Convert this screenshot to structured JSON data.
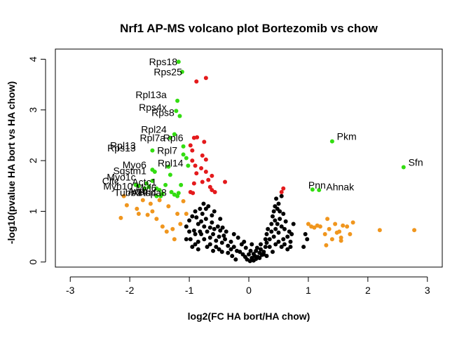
{
  "chart_data": {
    "type": "scatter",
    "title": "Nrf1 AP-MS volcano plot Bortezomib vs chow",
    "xlabel": "log2(FC HA bort/HA chow)",
    "ylabel": "-log10(pvalue HA bort vs HA chow)",
    "xlim": [
      -3.25,
      3.25
    ],
    "ylim": [
      -0.1,
      4.2
    ],
    "xticks": [
      -3,
      -2,
      -1,
      0,
      1,
      2,
      3
    ],
    "yticks": [
      0,
      1,
      2,
      3,
      4
    ],
    "xtick_labels": [
      "-3",
      "-2",
      "-1",
      "0",
      "1",
      "2",
      "3"
    ],
    "ytick_labels": [
      "0",
      "1",
      "2",
      "3",
      "4"
    ],
    "grid": false,
    "colors": {
      "black": "#000000",
      "red": "#e41a1c",
      "green": "#33dd11",
      "orange": "#f0961e"
    },
    "series": [
      {
        "color": "black",
        "points": [
          [
            0.02,
            0.02
          ],
          [
            -0.03,
            0.05
          ],
          [
            0.05,
            0.08
          ],
          [
            0.08,
            0.03
          ],
          [
            -0.06,
            0.1
          ],
          [
            0.1,
            0.12
          ],
          [
            0.12,
            0.06
          ],
          [
            -0.1,
            0.15
          ],
          [
            0.15,
            0.1
          ],
          [
            0.18,
            0.18
          ],
          [
            -0.15,
            0.2
          ],
          [
            0.2,
            0.25
          ],
          [
            0.22,
            0.14
          ],
          [
            -0.2,
            0.22
          ],
          [
            0.25,
            0.2
          ],
          [
            0.28,
            0.3
          ],
          [
            -0.25,
            0.3
          ],
          [
            0.3,
            0.12
          ],
          [
            0.05,
            0.35
          ],
          [
            -0.05,
            0.28
          ],
          [
            0.0,
            0.15
          ],
          [
            0.03,
            0.22
          ],
          [
            -0.12,
            0.35
          ],
          [
            0.14,
            0.28
          ],
          [
            -0.3,
            0.4
          ],
          [
            -0.35,
            0.32
          ],
          [
            -0.4,
            0.45
          ],
          [
            -0.45,
            0.38
          ],
          [
            -0.5,
            0.5
          ],
          [
            -0.55,
            0.42
          ],
          [
            -0.6,
            0.55
          ],
          [
            -0.38,
            0.6
          ],
          [
            -0.42,
            0.52
          ],
          [
            -0.48,
            0.62
          ],
          [
            -0.52,
            0.7
          ],
          [
            -0.58,
            0.65
          ],
          [
            -0.62,
            0.78
          ],
          [
            -0.65,
            0.48
          ],
          [
            -0.7,
            0.6
          ],
          [
            -0.72,
            0.85
          ],
          [
            -0.75,
            0.7
          ],
          [
            -0.78,
            0.95
          ],
          [
            -0.8,
            0.55
          ],
          [
            -0.82,
            1.05
          ],
          [
            -0.85,
            0.75
          ],
          [
            -0.88,
            0.88
          ],
          [
            -0.9,
            1.0
          ],
          [
            -0.92,
            0.62
          ],
          [
            -0.95,
            0.9
          ],
          [
            -0.98,
            0.45
          ],
          [
            -1.0,
            0.82
          ],
          [
            -0.9,
            0.35
          ],
          [
            -0.85,
            0.25
          ],
          [
            -0.7,
            0.3
          ],
          [
            -0.6,
            0.22
          ],
          [
            -0.65,
            0.35
          ],
          [
            -0.55,
            0.3
          ],
          [
            -0.5,
            0.25
          ],
          [
            -0.45,
            0.2
          ],
          [
            -0.35,
            0.18
          ],
          [
            -0.3,
            0.25
          ],
          [
            -0.28,
            0.12
          ],
          [
            -0.22,
            0.05
          ],
          [
            -0.68,
            1.1
          ],
          [
            -0.72,
            1.05
          ],
          [
            -0.76,
            1.15
          ],
          [
            -0.58,
            1.0
          ],
          [
            -0.62,
            0.92
          ],
          [
            -0.48,
            0.85
          ],
          [
            -0.44,
            0.68
          ],
          [
            -1.05,
            0.7
          ],
          [
            -1.0,
            0.6
          ],
          [
            -1.05,
            0.45
          ],
          [
            -0.95,
            0.3
          ],
          [
            -0.82,
            0.6
          ],
          [
            0.3,
            0.55
          ],
          [
            0.35,
            0.45
          ],
          [
            0.38,
            0.6
          ],
          [
            0.42,
            0.5
          ],
          [
            0.45,
            0.65
          ],
          [
            0.48,
            0.75
          ],
          [
            0.5,
            0.58
          ],
          [
            0.52,
            0.85
          ],
          [
            0.55,
            0.7
          ],
          [
            0.58,
            0.95
          ],
          [
            0.6,
            0.65
          ],
          [
            0.62,
            0.8
          ],
          [
            0.65,
            0.5
          ],
          [
            0.68,
            0.6
          ],
          [
            0.7,
            0.4
          ],
          [
            0.72,
            0.55
          ],
          [
            0.75,
            0.75
          ],
          [
            0.4,
            0.9
          ],
          [
            0.42,
            1.0
          ],
          [
            0.44,
            1.1
          ],
          [
            0.46,
            1.25
          ],
          [
            0.48,
            1.05
          ],
          [
            0.5,
            1.15
          ],
          [
            0.52,
            1.0
          ],
          [
            0.55,
            1.3
          ],
          [
            0.35,
            0.3
          ],
          [
            0.4,
            0.2
          ],
          [
            0.45,
            0.35
          ],
          [
            0.5,
            0.4
          ],
          [
            0.55,
            0.3
          ],
          [
            0.6,
            0.35
          ],
          [
            0.65,
            0.25
          ],
          [
            0.32,
            0.65
          ],
          [
            0.38,
            0.75
          ],
          [
            0.28,
            0.45
          ],
          [
            0.95,
            0.55
          ],
          [
            0.98,
            0.45
          ],
          [
            0.92,
            0.3
          ],
          [
            0.25,
            0.15
          ],
          [
            0.2,
            0.35
          ],
          [
            0.12,
            0.22
          ],
          [
            0.08,
            0.16
          ],
          [
            -0.08,
            0.4
          ],
          [
            -0.18,
            0.48
          ],
          [
            -0.25,
            0.55
          ],
          [
            -0.85,
            0.4
          ],
          [
            -0.75,
            0.45
          ],
          [
            -0.9,
            0.55
          ],
          [
            -0.8,
            0.8
          ],
          [
            -0.65,
            0.68
          ],
          [
            0.44,
            0.82
          ],
          [
            0.3,
            0.38
          ],
          [
            0.58,
            0.45
          ],
          [
            0.7,
            0.3
          ],
          [
            0.18,
            0.08
          ]
        ]
      },
      {
        "color": "red",
        "points": [
          [
            -0.72,
            3.63
          ],
          [
            -0.88,
            3.56
          ],
          [
            -0.87,
            2.46
          ],
          [
            -0.92,
            2.45
          ],
          [
            -0.75,
            2.37
          ],
          [
            -0.98,
            2.3
          ],
          [
            -0.95,
            2.2
          ],
          [
            -0.78,
            2.1
          ],
          [
            -0.72,
            2.02
          ],
          [
            -0.95,
            2.0
          ],
          [
            -0.9,
            1.9
          ],
          [
            -0.8,
            1.85
          ],
          [
            -0.88,
            1.75
          ],
          [
            -0.72,
            1.78
          ],
          [
            -0.62,
            1.7
          ],
          [
            -0.68,
            1.62
          ],
          [
            -0.78,
            1.58
          ],
          [
            -0.4,
            1.58
          ],
          [
            -0.92,
            1.55
          ],
          [
            -0.65,
            1.48
          ],
          [
            -0.62,
            1.42
          ],
          [
            -0.57,
            1.38
          ],
          [
            -0.98,
            1.38
          ],
          [
            -0.94,
            1.36
          ],
          [
            0.58,
            1.45
          ],
          [
            0.55,
            1.38
          ]
        ]
      },
      {
        "color": "green",
        "points": [
          [
            -1.18,
            3.95
          ],
          [
            -1.12,
            3.75
          ],
          [
            -1.2,
            3.18
          ],
          [
            -1.22,
            2.98
          ],
          [
            -1.16,
            2.88
          ],
          [
            -1.25,
            2.52
          ],
          [
            -1.1,
            2.28
          ],
          [
            -1.32,
            2.45
          ],
          [
            -1.62,
            2.2
          ],
          [
            -1.1,
            2.12
          ],
          [
            -1.05,
            2.05
          ],
          [
            -1.02,
            1.9
          ],
          [
            -1.35,
            1.88
          ],
          [
            -1.62,
            1.82
          ],
          [
            -1.58,
            1.78
          ],
          [
            -1.32,
            1.72
          ],
          [
            -1.4,
            1.52
          ],
          [
            -1.62,
            1.6
          ],
          [
            -1.72,
            1.55
          ],
          [
            -1.85,
            1.5
          ],
          [
            -1.9,
            1.52
          ],
          [
            -1.68,
            1.48
          ],
          [
            -1.75,
            1.45
          ],
          [
            -1.55,
            1.45
          ],
          [
            -1.5,
            1.42
          ],
          [
            -1.45,
            1.35
          ],
          [
            -1.3,
            1.38
          ],
          [
            -1.25,
            1.33
          ],
          [
            -1.18,
            1.36
          ],
          [
            -1.14,
            1.52
          ],
          [
            -1.48,
            1.3
          ],
          [
            -1.55,
            1.3
          ],
          [
            -1.2,
            1.3
          ],
          [
            1.07,
            1.43
          ],
          [
            1.18,
            1.42
          ],
          [
            1.4,
            2.38
          ],
          [
            2.6,
            1.87
          ]
        ]
      },
      {
        "color": "orange",
        "points": [
          [
            -2.15,
            0.87
          ],
          [
            -2.1,
            1.3
          ],
          [
            -2.05,
            1.12
          ],
          [
            -1.88,
            1.05
          ],
          [
            -1.85,
            0.95
          ],
          [
            -1.78,
            1.22
          ],
          [
            -1.7,
            0.93
          ],
          [
            -1.62,
            1.0
          ],
          [
            -1.55,
            0.85
          ],
          [
            -1.5,
            1.22
          ],
          [
            -1.45,
            0.7
          ],
          [
            -1.38,
            0.6
          ],
          [
            -1.28,
            0.65
          ],
          [
            -1.2,
            0.95
          ],
          [
            -1.15,
            0.75
          ],
          [
            -1.1,
            1.2
          ],
          [
            -1.05,
            0.95
          ],
          [
            -1.25,
            0.45
          ],
          [
            -1.35,
            1.1
          ],
          [
            -1.65,
            1.15
          ],
          [
            1.0,
            0.75
          ],
          [
            1.05,
            0.7
          ],
          [
            1.1,
            0.68
          ],
          [
            1.15,
            0.72
          ],
          [
            1.2,
            0.7
          ],
          [
            1.28,
            0.55
          ],
          [
            1.32,
            0.85
          ],
          [
            1.35,
            0.65
          ],
          [
            1.4,
            0.45
          ],
          [
            1.45,
            0.75
          ],
          [
            1.48,
            0.58
          ],
          [
            1.52,
            0.6
          ],
          [
            1.55,
            0.48
          ],
          [
            1.58,
            0.72
          ],
          [
            1.65,
            0.7
          ],
          [
            1.7,
            0.55
          ],
          [
            1.75,
            0.78
          ],
          [
            1.3,
            0.33
          ],
          [
            1.55,
            0.42
          ],
          [
            2.2,
            0.63
          ],
          [
            2.78,
            0.63
          ]
        ]
      }
    ],
    "labels": [
      {
        "text": "Rps18",
        "x": -1.2,
        "y": 3.95,
        "anchor": "end"
      },
      {
        "text": "Rps25",
        "x": -1.12,
        "y": 3.75,
        "anchor": "end"
      },
      {
        "text": "Rpl13a",
        "x": -1.38,
        "y": 3.3,
        "anchor": "end"
      },
      {
        "text": "Rps4x",
        "x": -1.38,
        "y": 3.05,
        "anchor": "end"
      },
      {
        "text": "Rps8",
        "x": -1.25,
        "y": 2.95,
        "anchor": "end"
      },
      {
        "text": "Rpl24",
        "x": -1.38,
        "y": 2.62,
        "anchor": "end"
      },
      {
        "text": "Rpl7a",
        "x": -1.4,
        "y": 2.45,
        "anchor": "end"
      },
      {
        "text": "Rpl6",
        "x": -1.1,
        "y": 2.45,
        "anchor": "end"
      },
      {
        "text": "Rpl13",
        "x": -1.9,
        "y": 2.3,
        "anchor": "end"
      },
      {
        "text": "Rps13",
        "x": -1.9,
        "y": 2.25,
        "anchor": "end"
      },
      {
        "text": "Rpl7",
        "x": -1.2,
        "y": 2.2,
        "anchor": "end"
      },
      {
        "text": "Rpl14",
        "x": -1.1,
        "y": 1.95,
        "anchor": "end"
      },
      {
        "text": "Myo6",
        "x": -1.72,
        "y": 1.92,
        "anchor": "end"
      },
      {
        "text": "Sqstm1",
        "x": -1.72,
        "y": 1.8,
        "anchor": "end"
      },
      {
        "text": "Myo1c",
        "x": -1.9,
        "y": 1.68,
        "anchor": "end"
      },
      {
        "text": "Cltc",
        "x": -2.18,
        "y": 1.6,
        "anchor": "end"
      },
      {
        "text": "Actc1",
        "x": -1.55,
        "y": 1.58,
        "anchor": "end"
      },
      {
        "text": "Myh10",
        "x": -1.95,
        "y": 1.5,
        "anchor": "end"
      },
      {
        "text": "Myl6",
        "x": -1.55,
        "y": 1.46,
        "anchor": "end"
      },
      {
        "text": "Actb",
        "x": -1.7,
        "y": 1.4,
        "anchor": "end"
      },
      {
        "text": "Actn4",
        "x": -1.55,
        "y": 1.37,
        "anchor": "end"
      },
      {
        "text": "Tubb5",
        "x": -1.8,
        "y": 1.37,
        "anchor": "end"
      },
      {
        "text": "Hspa8",
        "x": -1.38,
        "y": 1.37,
        "anchor": "end"
      },
      {
        "text": "Pkm",
        "x": 1.48,
        "y": 2.48,
        "anchor": "start"
      },
      {
        "text": "Sfn",
        "x": 2.68,
        "y": 1.97,
        "anchor": "start"
      },
      {
        "text": "Pnn",
        "x": 1.0,
        "y": 1.52,
        "anchor": "start"
      },
      {
        "text": "Ahnak",
        "x": 1.3,
        "y": 1.48,
        "anchor": "start"
      }
    ]
  }
}
